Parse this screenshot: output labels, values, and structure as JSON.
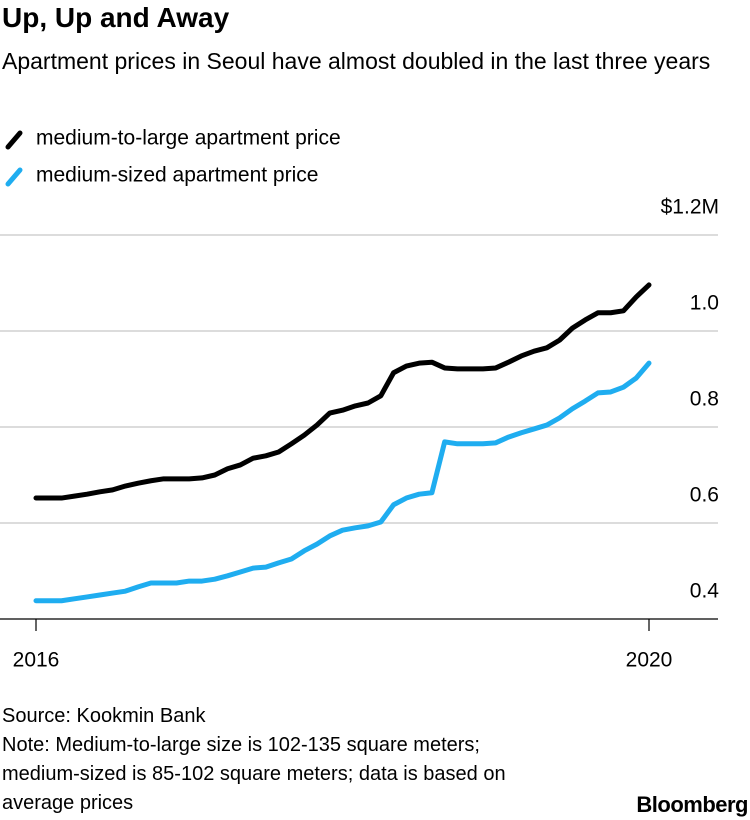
{
  "chart_data": {
    "type": "line",
    "title": "Up, Up and Away",
    "subtitle": "Apartment prices in Seoul have almost doubled in the last three years",
    "source": "Source: Kookmin Bank",
    "note": "Note: Medium-to-large size is 102-135 square meters; medium-sized is 85-102 square meters; data is based on average prices",
    "brand": "Bloomberg",
    "categories": [
      "2016",
      null,
      null,
      null,
      null,
      null,
      null,
      null,
      null,
      null,
      null,
      null,
      null,
      null,
      null,
      null,
      null,
      null,
      null,
      null,
      null,
      null,
      null,
      null,
      null,
      null,
      null,
      null,
      null,
      null,
      null,
      null,
      null,
      null,
      null,
      null,
      null,
      null,
      null,
      null,
      null,
      null,
      null,
      null,
      null,
      null,
      null,
      null,
      "2020"
    ],
    "series": [
      {
        "name": "medium-to-large apartment price",
        "color": "#000000",
        "values": [
          0.652,
          0.652,
          0.652,
          0.656,
          0.66,
          0.665,
          0.669,
          0.677,
          0.683,
          0.688,
          0.692,
          0.692,
          0.692,
          0.694,
          0.7,
          0.713,
          0.721,
          0.735,
          0.74,
          0.748,
          0.765,
          0.783,
          0.804,
          0.829,
          0.835,
          0.844,
          0.85,
          0.865,
          0.913,
          0.927,
          0.933,
          0.935,
          0.923,
          0.921,
          0.921,
          0.921,
          0.923,
          0.935,
          0.948,
          0.958,
          0.965,
          0.981,
          1.006,
          1.023,
          1.038,
          1.038,
          1.042,
          1.071,
          1.096
        ]
      },
      {
        "name": "medium-sized apartment price",
        "color": "#1fadf0",
        "values": [
          0.438,
          0.438,
          0.438,
          0.442,
          0.446,
          0.45,
          0.454,
          0.458,
          0.467,
          0.475,
          0.475,
          0.475,
          0.479,
          0.479,
          0.483,
          0.49,
          0.498,
          0.506,
          0.508,
          0.517,
          0.525,
          0.542,
          0.556,
          0.573,
          0.585,
          0.59,
          0.594,
          0.602,
          0.638,
          0.652,
          0.66,
          0.663,
          0.769,
          0.765,
          0.765,
          0.765,
          0.767,
          0.779,
          0.788,
          0.796,
          0.804,
          0.819,
          0.838,
          0.854,
          0.871,
          0.873,
          0.883,
          0.902,
          0.933
        ]
      }
    ],
    "ylim": [
      0.4,
      1.2
    ],
    "yticks": [
      0.4,
      0.6,
      0.8,
      {
        "value": 1,
        "label": "1.0"
      },
      {
        "value": 1.2,
        "label": "$1.2M"
      }
    ],
    "grid": true,
    "legend": "top-left"
  }
}
